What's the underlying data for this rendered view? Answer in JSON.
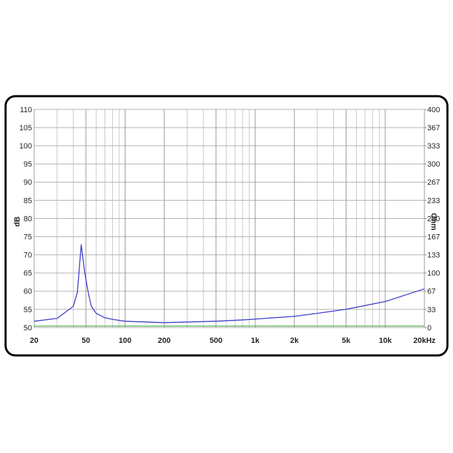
{
  "chart_data": {
    "type": "line",
    "ylabel": "dB",
    "y2label": "Ohm",
    "xscale": "log",
    "xlim": [
      20,
      20000
    ],
    "xticks": [
      20,
      50,
      100,
      200,
      500,
      {
        "value": 1000,
        "label": "1k"
      },
      {
        "value": 2000,
        "label": "2k"
      },
      {
        "value": 5000,
        "label": "5k"
      },
      {
        "value": 10000,
        "label": "10k"
      },
      {
        "value": 20000,
        "label": "20kHz"
      }
    ],
    "xgrid_minor": [
      30,
      40,
      60,
      70,
      80,
      90,
      300,
      400,
      600,
      700,
      800,
      900,
      3000,
      4000,
      6000,
      7000,
      8000,
      9000
    ],
    "ylim": [
      50,
      110
    ],
    "yticks": [
      50,
      55,
      60,
      65,
      70,
      75,
      80,
      85,
      90,
      95,
      100,
      105,
      110
    ],
    "y2lim": [
      0,
      400
    ],
    "y2ticks": [
      0,
      {
        "value": 33.33,
        "label": "33"
      },
      {
        "value": 66.67,
        "label": "67"
      },
      100,
      {
        "value": 133.33,
        "label": "133"
      },
      {
        "value": 166.67,
        "label": "167"
      },
      200,
      {
        "value": 233.33,
        "label": "233"
      },
      {
        "value": 266.67,
        "label": "267"
      },
      300,
      {
        "value": 333.33,
        "label": "333"
      },
      {
        "value": 366.67,
        "label": "367"
      },
      400
    ],
    "grid": true,
    "series": [
      {
        "color": "#3b3bc8",
        "axis": "y2",
        "x": [
          20,
          30,
          40,
          43,
          46,
          49,
          52,
          55,
          60,
          70,
          80,
          100,
          200,
          500,
          800,
          1000,
          2000,
          3000,
          5000,
          10000,
          20000
        ],
        "values": [
          11.6,
          16.8,
          39,
          65,
          152,
          100,
          65,
          39,
          26,
          18,
          15,
          11.6,
          9,
          11.6,
          14,
          15.5,
          20.6,
          26,
          33.5,
          47.7,
          71
        ]
      },
      {
        "color": "#4caf50",
        "x": [
          20,
          20000
        ],
        "values": [
          50.4,
          50.4
        ]
      }
    ]
  }
}
